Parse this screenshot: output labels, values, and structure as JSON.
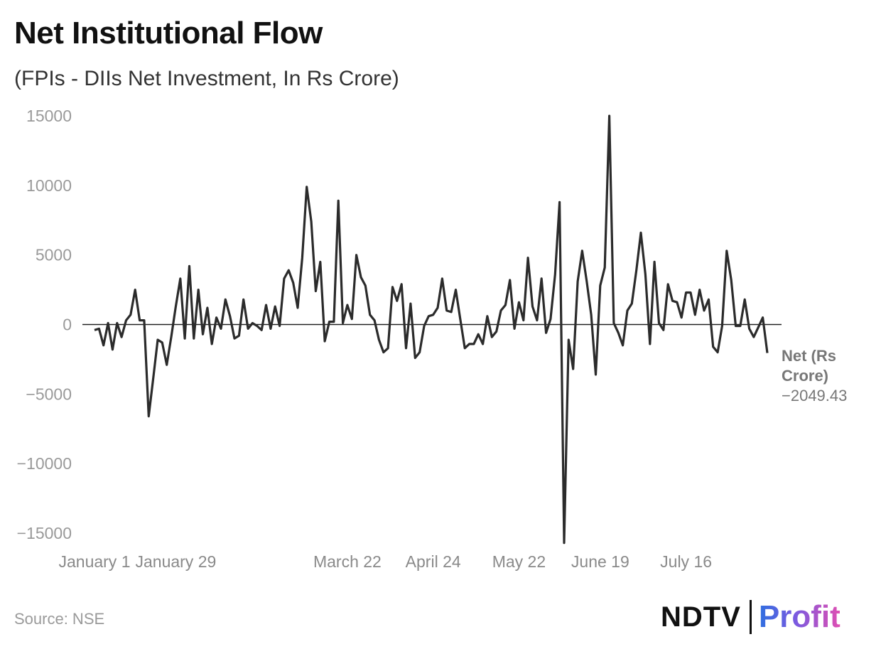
{
  "title": "Net Institutional Flow",
  "subtitle": "(FPIs - DIIs Net Investment, In Rs Crore)",
  "source": "Source: NSE",
  "brand": {
    "left": "NDTV",
    "right": "Profit"
  },
  "colors": {
    "line": "#2b2b2b",
    "zero_line": "#222222",
    "tick_text": "#9a9a9a",
    "label_text": "#777777"
  },
  "chart_data": {
    "type": "line",
    "title": "Net Institutional Flow",
    "subtitle": "(FPIs - DIIs Net Investment, In Rs Crore)",
    "ylim": [
      -15000,
      15000
    ],
    "yticks": [
      15000,
      10000,
      5000,
      0,
      -5000,
      -10000,
      -15000
    ],
    "ytick_labels": [
      "15000",
      "10000",
      "5000",
      "0",
      "−5000",
      "−10000",
      "−15000"
    ],
    "xticks": [
      {
        "label": "January 1",
        "index": 0
      },
      {
        "label": "January 29",
        "index": 18
      },
      {
        "label": "March 22",
        "index": 56
      },
      {
        "label": "April 24",
        "index": 75
      },
      {
        "label": "May 22",
        "index": 94
      },
      {
        "label": "June 19",
        "index": 112
      },
      {
        "label": "July 16",
        "index": 131
      }
    ],
    "grid": false,
    "series": [
      {
        "name": "Net (Rs Crore)",
        "last_value_label": "−2049.43",
        "values": [
          -400,
          -300,
          -1500,
          100,
          -1800,
          100,
          -900,
          300,
          700,
          2500,
          300,
          300,
          -6600,
          -3900,
          -1100,
          -1300,
          -2900,
          -900,
          1300,
          3300,
          -1000,
          4200,
          -1000,
          2500,
          -700,
          1200,
          -1400,
          500,
          -300,
          1800,
          600,
          -1000,
          -800,
          1800,
          -300,
          100,
          -100,
          -400,
          1400,
          -300,
          1300,
          -100,
          3300,
          3900,
          3000,
          1200,
          4800,
          9900,
          7400,
          2400,
          4500,
          -1200,
          200,
          200,
          8900,
          100,
          1400,
          400,
          5000,
          3400,
          2800,
          700,
          300,
          -1100,
          -2000,
          -1700,
          2700,
          1700,
          2900,
          -1700,
          1500,
          -2400,
          -2000,
          -100,
          600,
          700,
          1200,
          3300,
          1000,
          900,
          2500,
          400,
          -1700,
          -1400,
          -1400,
          -700,
          -1400,
          600,
          -900,
          -500,
          1000,
          1400,
          3200,
          -300,
          1600,
          300,
          4800,
          1300,
          300,
          3300,
          -600,
          400,
          3600,
          8800,
          -15700,
          -1100,
          -3200,
          3100,
          5300,
          3100,
          700,
          -3600,
          2800,
          4100,
          15000,
          100,
          -600,
          -1500,
          1000,
          1500,
          3900,
          6600,
          3600,
          -1400,
          4500,
          100,
          -400,
          2900,
          1700,
          1600,
          500,
          2300,
          2300,
          700,
          2500,
          1000,
          1800,
          -1600,
          -2000,
          -100,
          5300,
          3200,
          -100,
          -100,
          1800,
          -300,
          -900,
          -200,
          500,
          -2049.43
        ]
      }
    ]
  }
}
